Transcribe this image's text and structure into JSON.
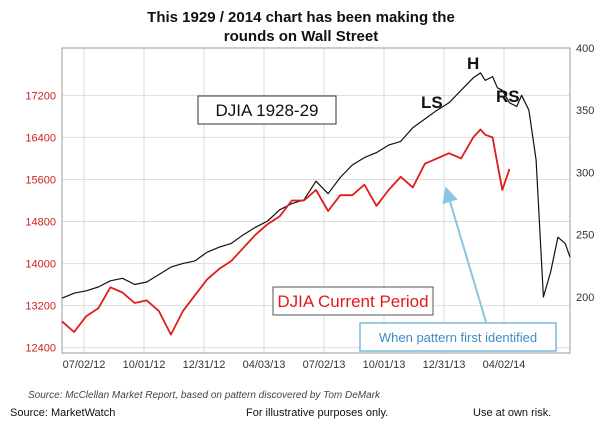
{
  "title_line1": "This 1929 / 2014 chart has been making the",
  "title_line2": "rounds on Wall Street",
  "source_note": "Source: McClellan Market Report, based on pattern discovered by Tom DeMark",
  "footer": {
    "left": "Source: MarketWatch",
    "middle": "For illustrative purposes only.",
    "right": "Use at own risk."
  },
  "colors": {
    "series_1928": "#111111",
    "series_current": "#e01b1b",
    "arrow": "#8cc5e0",
    "callout_border": "#7ab8d9",
    "callout_text": "#3a8fc7"
  },
  "chart_data": {
    "type": "line",
    "x_ticks": [
      "07/02/12",
      "10/01/12",
      "12/31/12",
      "04/03/13",
      "07/02/13",
      "10/01/13",
      "12/31/13",
      "04/02/14"
    ],
    "x_range": [
      0,
      21
    ],
    "x_unit": "months since 07/02/12",
    "left_axis": {
      "ticks": [
        12400,
        13200,
        14000,
        14800,
        15600,
        16400,
        17200
      ],
      "range": [
        12300,
        18100
      ]
    },
    "right_axis": {
      "ticks": [
        200,
        250,
        300,
        350,
        400
      ],
      "range": [
        155,
        400
      ]
    },
    "series": [
      {
        "name": "DJIA 1928-29",
        "axis": "right",
        "x": [
          0,
          0.5,
          1,
          1.5,
          2,
          2.5,
          3,
          3.5,
          4,
          4.5,
          5,
          5.5,
          6,
          6.5,
          7,
          7.5,
          8,
          8.5,
          9,
          9.5,
          10,
          10.5,
          11,
          11.5,
          12,
          12.5,
          13,
          13.5,
          14,
          14.5,
          15,
          15.5,
          16,
          16.5,
          17,
          17.3,
          17.5,
          17.8,
          18,
          18.2,
          18.5,
          18.8,
          19,
          19.3,
          19.6,
          19.9,
          20.2,
          20.5,
          20.8,
          21
        ],
        "values": [
          199,
          203,
          205,
          208,
          213,
          215,
          210,
          212,
          218,
          224,
          227,
          229,
          236,
          240,
          243,
          250,
          256,
          261,
          270,
          275,
          278,
          293,
          283,
          296,
          306,
          312,
          316,
          322,
          325,
          336,
          343,
          350,
          356,
          366,
          376,
          380,
          374,
          377,
          368,
          366,
          356,
          353,
          362,
          350,
          310,
          200,
          220,
          248,
          243,
          232
        ]
      },
      {
        "name": "DJIA Current Period",
        "axis": "left",
        "x": [
          0,
          0.5,
          1,
          1.5,
          2,
          2.5,
          3,
          3.5,
          4,
          4.5,
          5,
          5.5,
          6,
          6.5,
          7,
          7.5,
          8,
          8.5,
          9,
          9.5,
          10,
          10.5,
          11,
          11.5,
          12,
          12.5,
          13,
          13.5,
          14,
          14.5,
          15,
          15.5,
          16,
          16.5,
          17,
          17.3,
          17.5,
          17.8,
          18,
          18.2,
          18.5
        ],
        "values": [
          12900,
          12700,
          13000,
          13150,
          13550,
          13450,
          13250,
          13300,
          13100,
          12650,
          13100,
          13400,
          13700,
          13900,
          14050,
          14300,
          14550,
          14750,
          14900,
          15200,
          15200,
          15400,
          15000,
          15300,
          15300,
          15500,
          15100,
          15400,
          15650,
          15450,
          15900,
          16000,
          16100,
          16000,
          16400,
          16550,
          16450,
          16400,
          15900,
          15400,
          15800
        ]
      }
    ],
    "annotations": [
      "DJIA 1928-29",
      "DJIA Current Period",
      "When pattern first identified",
      "LS",
      "H",
      "RS"
    ]
  }
}
